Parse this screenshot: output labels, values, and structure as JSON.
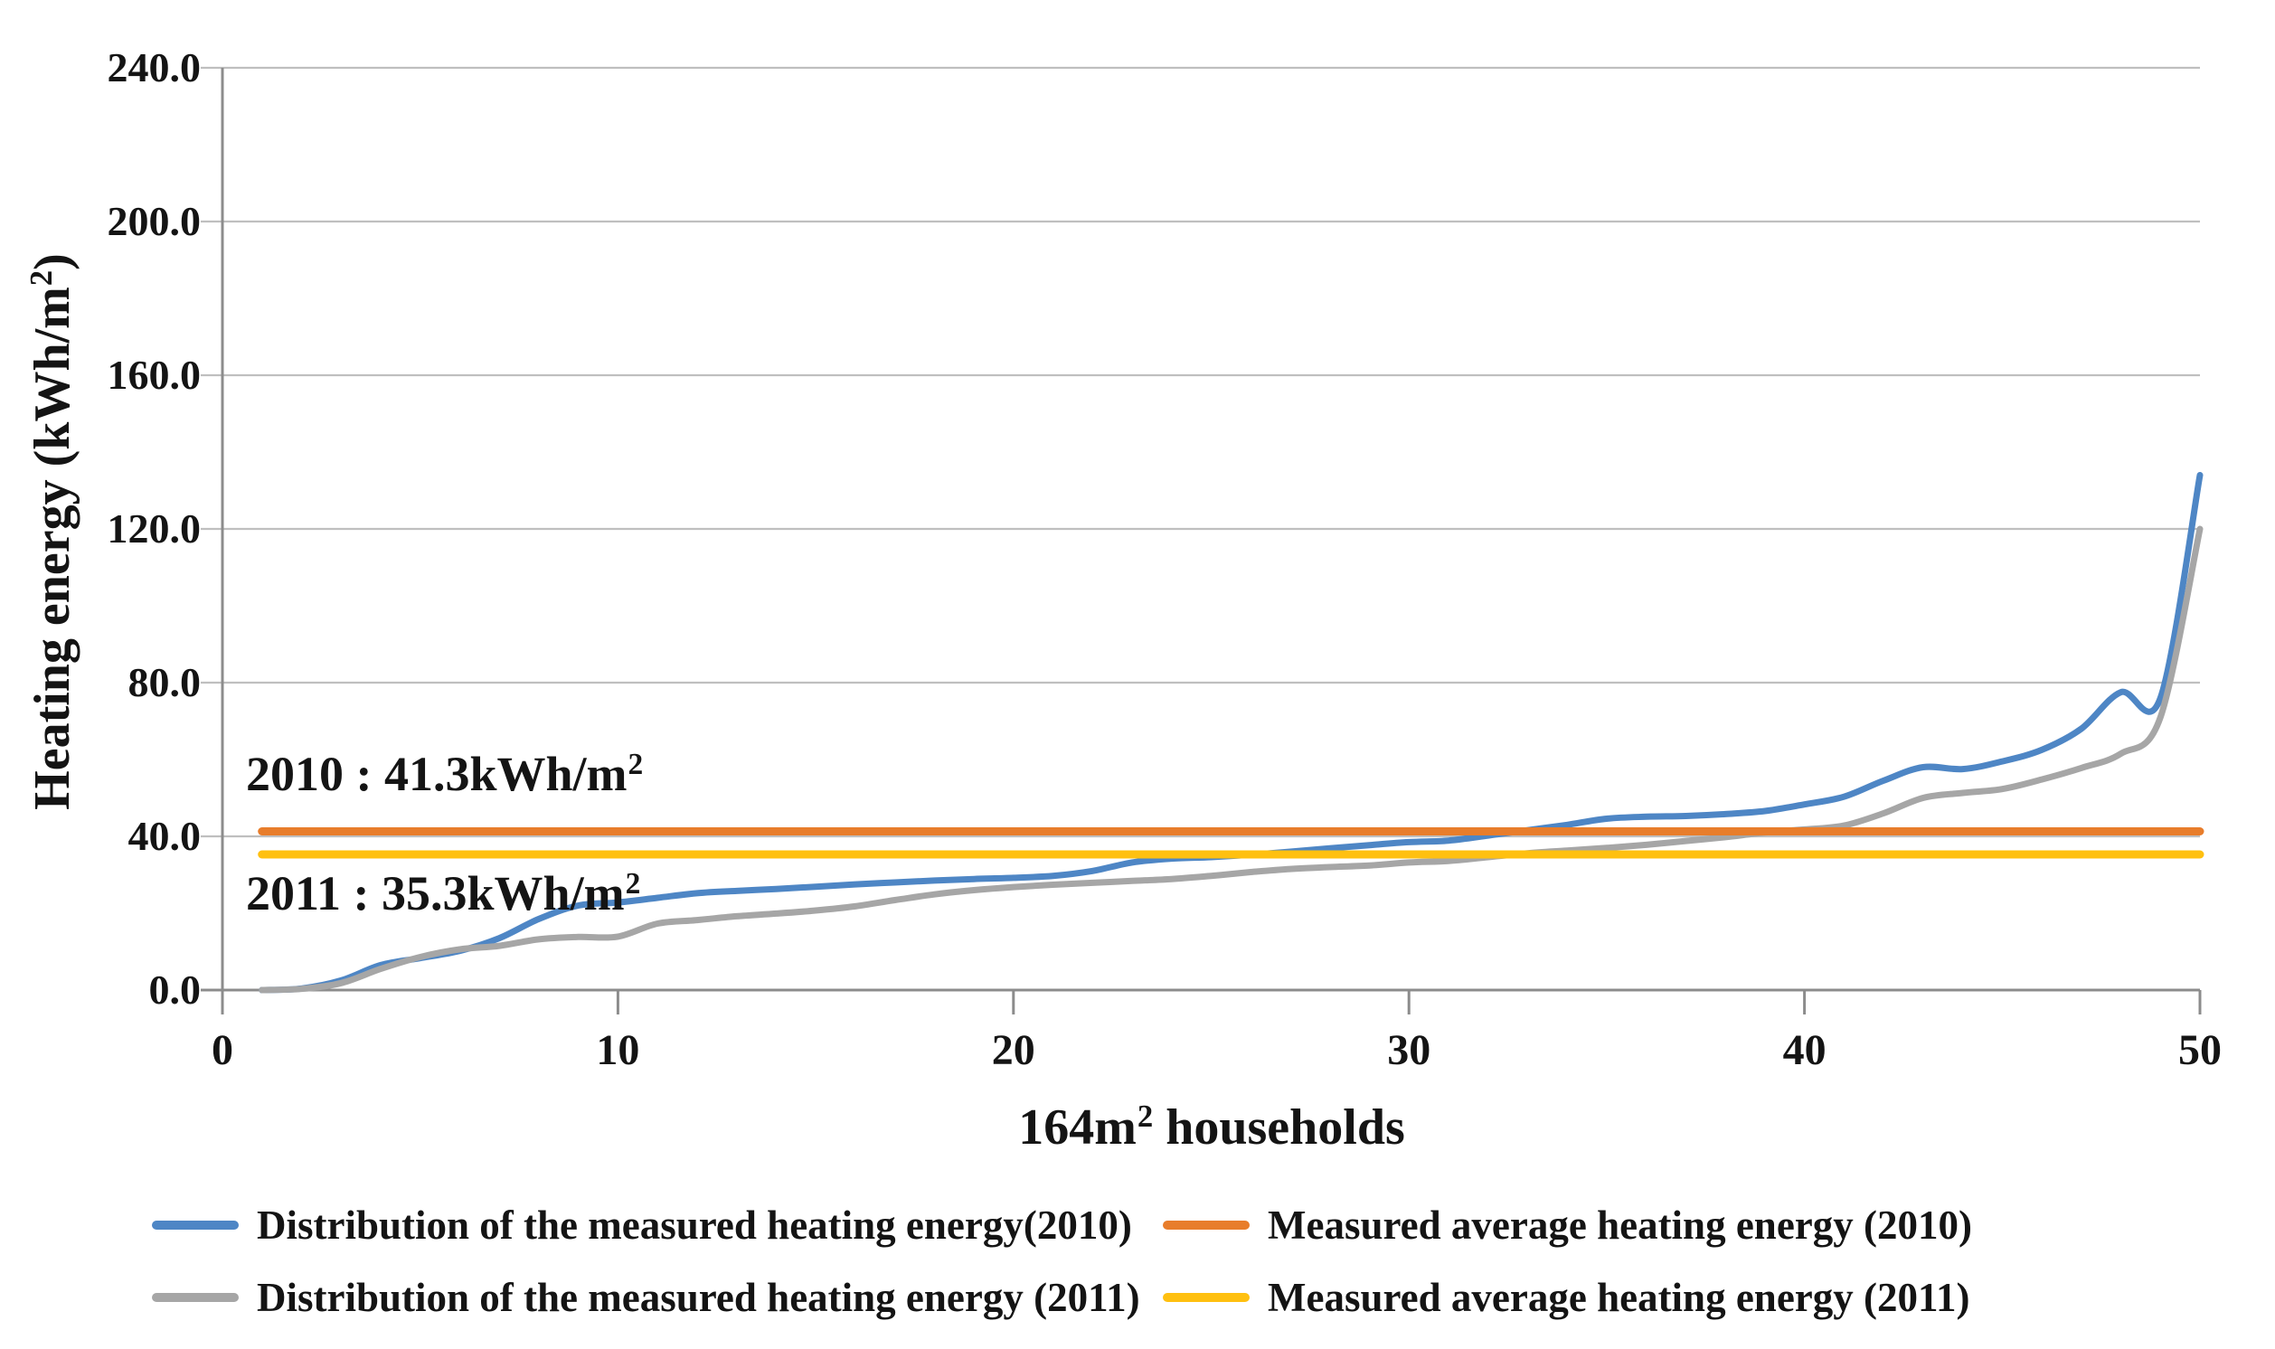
{
  "figure": {
    "background": "#ffffff",
    "text_color": "#141414"
  },
  "colors": {
    "grid": "#BFBFBF",
    "axis": "#8C8C8C",
    "series_2010": "#4E86C5",
    "series_2011": "#A6A6A6",
    "avg_2010": "#E87D2B",
    "avg_2011": "#FFC010"
  },
  "axes": {
    "ylabel": {
      "text": "Heating energy (kWh/m",
      "sup": "2",
      "suffix": ")"
    },
    "xlabel": {
      "text": "164m",
      "sup": "2",
      "suffix": " households"
    },
    "ytick_labels": [
      "0.0",
      "40.0",
      "80.0",
      "120.0",
      "160.0",
      "200.0",
      "240.0"
    ],
    "xtick_labels": [
      "0",
      "10",
      "20",
      "30",
      "40",
      "50"
    ]
  },
  "annotations": [
    {
      "text": "2010 : 41.3kWh/m",
      "sup": "2"
    },
    {
      "text": "2011 : 35.3kWh/m",
      "sup": "2"
    }
  ],
  "legend": {
    "items": [
      {
        "label": "Distribution of the measured heating energy(2010)",
        "color": "#4E86C5"
      },
      {
        "label": "Measured average heating energy (2010)",
        "color": "#E87D2B"
      },
      {
        "label": "Distribution of the measured heating energy (2011)",
        "color": "#A6A6A6"
      },
      {
        "label": "Measured average heating energy (2011)",
        "color": "#FFC010"
      }
    ]
  },
  "chart_data": {
    "type": "line",
    "title": "",
    "xlabel": "164m2 households",
    "ylabel": "Heating energy (kWh/m2)",
    "xlim": [
      0,
      50
    ],
    "ylim": [
      0,
      240
    ],
    "xticks": [
      0,
      10,
      20,
      30,
      40,
      50
    ],
    "yticks": [
      0,
      40,
      80,
      120,
      160,
      200,
      240
    ],
    "grid": true,
    "legend_position": "bottom",
    "x": [
      1,
      2,
      3,
      4,
      5,
      6,
      7,
      8,
      9,
      10,
      11,
      12,
      13,
      14,
      15,
      16,
      17,
      18,
      19,
      20,
      21,
      22,
      23,
      24,
      25,
      26,
      27,
      28,
      29,
      30,
      31,
      32,
      33,
      34,
      35,
      36,
      37,
      38,
      39,
      40,
      41,
      42,
      43,
      44,
      45,
      46,
      47,
      48,
      49,
      50
    ],
    "series": [
      {
        "name": "Distribution of the measured heating energy(2010)",
        "kind": "smooth",
        "color": "#4E86C5",
        "values": [
          0,
          0.4,
          2.5,
          6.5,
          8.3,
          10.2,
          13.5,
          18.5,
          22,
          22.8,
          24,
          25.2,
          25.8,
          26.3,
          26.9,
          27.5,
          28,
          28.5,
          28.9,
          29.2,
          29.7,
          31,
          33.2,
          34.2,
          34.6,
          35.2,
          36,
          36.9,
          37.7,
          38.5,
          38.9,
          40.2,
          41.6,
          43,
          44.6,
          45.1,
          45.3,
          45.8,
          46.6,
          48.3,
          50.3,
          54.5,
          58,
          57.5,
          59.5,
          62.5,
          68,
          77.5,
          76,
          134
        ]
      },
      {
        "name": "Distribution of the measured heating energy (2011)",
        "kind": "smooth",
        "color": "#A6A6A6",
        "values": [
          0,
          0.3,
          1.8,
          5.5,
          8.6,
          10.6,
          11.5,
          13.2,
          13.8,
          13.9,
          17.3,
          18.2,
          19.2,
          19.9,
          20.7,
          21.8,
          23.4,
          24.9,
          26,
          26.8,
          27.4,
          27.9,
          28.4,
          28.9,
          29.7,
          30.7,
          31.5,
          32,
          32.4,
          33.2,
          33.6,
          34.6,
          35.6,
          36.3,
          37,
          37.8,
          38.8,
          39.8,
          41,
          41.8,
          42.8,
          46,
          50,
          51.3,
          52.3,
          54.8,
          57.8,
          61.5,
          71,
          120
        ]
      },
      {
        "name": "Measured average heating energy (2010)",
        "kind": "constant",
        "color": "#E87D2B",
        "value": 41.3
      },
      {
        "name": "Measured average heating energy (2011)",
        "kind": "constant",
        "color": "#FFC010",
        "value": 35.3
      }
    ]
  }
}
